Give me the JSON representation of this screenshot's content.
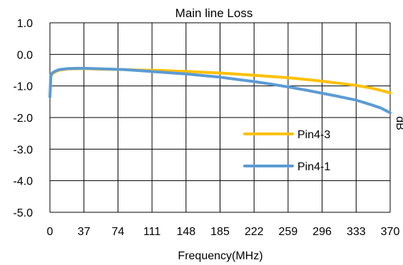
{
  "chart_data": {
    "type": "line",
    "title": "Main line Loss",
    "xlabel": "Frequency(MHz)",
    "ylabel": "dB",
    "xlim": [
      0,
      370
    ],
    "ylim": [
      -5.0,
      1.0
    ],
    "x_ticks": [
      "0",
      "37",
      "74",
      "111",
      "148",
      "185",
      "222",
      "259",
      "296",
      "333",
      "370"
    ],
    "y_ticks": [
      "1.0",
      "0.0",
      "-1.0",
      "-2.0",
      "-3.0",
      "-4.0",
      "-5.0"
    ],
    "grid": true,
    "legend_position": "right",
    "series": [
      {
        "name": "Pin4-3",
        "color": "#FFC000",
        "x": [
          0,
          1,
          3,
          6,
          10,
          20,
          37,
          60,
          80,
          100,
          120,
          148,
          170,
          185,
          200,
          222,
          240,
          259,
          280,
          296,
          310,
          333,
          350,
          360,
          370
        ],
        "y": [
          -1.3,
          -0.7,
          -0.6,
          -0.55,
          -0.5,
          -0.46,
          -0.45,
          -0.47,
          -0.48,
          -0.5,
          -0.51,
          -0.54,
          -0.57,
          -0.59,
          -0.62,
          -0.66,
          -0.7,
          -0.74,
          -0.8,
          -0.85,
          -0.9,
          -0.98,
          -1.07,
          -1.14,
          -1.22
        ]
      },
      {
        "name": "Pin4-1",
        "color": "#5B9BD5",
        "x": [
          0,
          1,
          3,
          6,
          10,
          20,
          37,
          60,
          80,
          100,
          120,
          148,
          170,
          185,
          200,
          222,
          240,
          259,
          280,
          296,
          310,
          333,
          350,
          360,
          370
        ],
        "y": [
          -1.35,
          -0.65,
          -0.58,
          -0.53,
          -0.48,
          -0.45,
          -0.44,
          -0.46,
          -0.48,
          -0.52,
          -0.56,
          -0.62,
          -0.68,
          -0.72,
          -0.78,
          -0.86,
          -0.94,
          -1.03,
          -1.14,
          -1.23,
          -1.31,
          -1.45,
          -1.6,
          -1.7,
          -1.85
        ]
      }
    ]
  }
}
